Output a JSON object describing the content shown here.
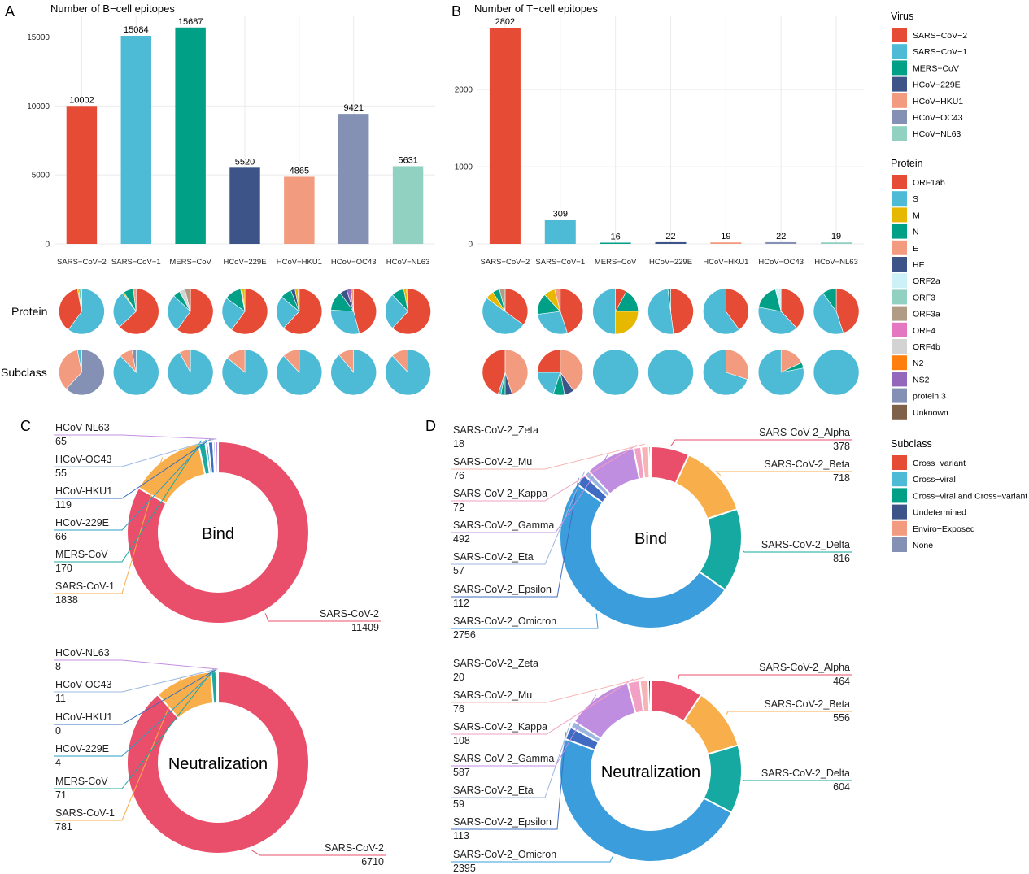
{
  "panel_labels": [
    "A",
    "B",
    "C",
    "D"
  ],
  "row_labels": {
    "protein": "Protein",
    "subclass": "Subclass"
  },
  "colors": {
    "virus": [
      "#E64B35",
      "#4DBBD5",
      "#00A087",
      "#3C5488",
      "#F39B7F",
      "#8491B4",
      "#91D1C2"
    ],
    "protein": [
      "#E64B35",
      "#4DBBD5",
      "#E7B800",
      "#00A087",
      "#F39B7F",
      "#3C5488",
      "#CCF2F8",
      "#91D1C2",
      "#B09C85",
      "#E377C2",
      "#D3D3D3",
      "#FF7F0E",
      "#9467BD",
      "#8491B4",
      "#7E6148"
    ],
    "subclass": [
      "#E64B35",
      "#4DBBD5",
      "#00A087",
      "#3C5488",
      "#F39B7F",
      "#8491B4"
    ],
    "donut_c": [
      "#E94F6A",
      "#F8AE4A",
      "#1BA89F",
      "#2E9CC6",
      "#3A6FBF",
      "#9BB8E0",
      "#C58FE0"
    ],
    "donut_d": [
      "#E94F6A",
      "#F8AE4A",
      "#16A9A2",
      "#3B9DDB",
      "#3F6CC2",
      "#9BB6E0",
      "#C08EE1",
      "#F2A0C4",
      "#F7B4B4"
    ]
  },
  "legends": {
    "virus": {
      "title": "Virus",
      "items": [
        "SARS−CoV−2",
        "SARS−CoV−1",
        "MERS−CoV",
        "HCoV−229E",
        "HCoV−HKU1",
        "HCoV−OC43",
        "HCoV−NL63"
      ]
    },
    "protein": {
      "title": "Protein",
      "items": [
        "ORF1ab",
        "S",
        "M",
        "N",
        "E",
        "HE",
        "ORF2a",
        "ORF3",
        "ORF3a",
        "ORF4",
        "ORF4b",
        "N2",
        "NS2",
        "protein 3",
        "Unknown"
      ]
    },
    "subclass": {
      "title": "Subclass",
      "items": [
        "Cross−variant",
        "Cross−viral",
        "Cross−viral and Cross−variant",
        "Undetermined",
        "Enviro−Exposed",
        "None"
      ]
    }
  },
  "chart_data": [
    {
      "id": "A",
      "type": "bar",
      "title": "Number of B−cell epitopes",
      "categories": [
        "SARS−CoV−2",
        "SARS−CoV−1",
        "MERS−CoV",
        "HCoV−229E",
        "HCoV−HKU1",
        "HCoV−OC43",
        "HCoV−NL63"
      ],
      "values": [
        10002,
        15084,
        15687,
        5520,
        4865,
        9421,
        5631
      ],
      "ylim": [
        0,
        16500
      ],
      "yticks": [
        0,
        5000,
        10000,
        15000
      ],
      "grid": true
    },
    {
      "id": "B",
      "type": "bar",
      "title": "Number of T−cell epitopes",
      "categories": [
        "SARS−CoV−2",
        "SARS−CoV−1",
        "MERS−CoV",
        "HCoV−229E",
        "HCoV−HKU1",
        "HCoV−OC43",
        "HCoV−NL63"
      ],
      "values": [
        2802,
        309,
        16,
        22,
        19,
        22,
        19
      ],
      "ylim": [
        0,
        2950
      ],
      "yticks": [
        0,
        1000,
        2000
      ],
      "grid": true
    },
    {
      "id": "A-pies",
      "type": "pie",
      "protein": [
        [
          {
            "c": 1,
            "v": 60
          },
          {
            "c": 0,
            "v": 37
          },
          {
            "c": 2,
            "v": 1
          },
          {
            "c": 3,
            "v": 1
          },
          {
            "c": 4,
            "v": 1
          }
        ],
        [
          {
            "c": 0,
            "v": 63
          },
          {
            "c": 1,
            "v": 27
          },
          {
            "c": 2,
            "v": 1
          },
          {
            "c": 3,
            "v": 7
          },
          {
            "c": 4,
            "v": 2
          }
        ],
        [
          {
            "c": 0,
            "v": 60
          },
          {
            "c": 1,
            "v": 27
          },
          {
            "c": 3,
            "v": 5
          },
          {
            "c": 10,
            "v": 4
          },
          {
            "c": 8,
            "v": 4
          }
        ],
        [
          {
            "c": 0,
            "v": 60
          },
          {
            "c": 1,
            "v": 25
          },
          {
            "c": 3,
            "v": 12
          },
          {
            "c": 4,
            "v": 1
          },
          {
            "c": 2,
            "v": 2
          }
        ],
        [
          {
            "c": 0,
            "v": 62
          },
          {
            "c": 1,
            "v": 24
          },
          {
            "c": 3,
            "v": 8
          },
          {
            "c": 5,
            "v": 3
          },
          {
            "c": 2,
            "v": 2
          },
          {
            "c": 4,
            "v": 1
          }
        ],
        [
          {
            "c": 0,
            "v": 46
          },
          {
            "c": 1,
            "v": 30
          },
          {
            "c": 3,
            "v": 14
          },
          {
            "c": 5,
            "v": 5
          },
          {
            "c": 12,
            "v": 3
          },
          {
            "c": 4,
            "v": 2
          }
        ],
        [
          {
            "c": 0,
            "v": 62
          },
          {
            "c": 1,
            "v": 26
          },
          {
            "c": 3,
            "v": 9
          },
          {
            "c": 2,
            "v": 2
          },
          {
            "c": 4,
            "v": 1
          }
        ]
      ],
      "subclass": [
        [
          {
            "c": 5,
            "v": 62
          },
          {
            "c": 4,
            "v": 35
          },
          {
            "c": 1,
            "v": 3
          }
        ],
        [
          {
            "c": 1,
            "v": 88
          },
          {
            "c": 4,
            "v": 9
          },
          {
            "c": 5,
            "v": 3
          }
        ],
        [
          {
            "c": 1,
            "v": 92
          },
          {
            "c": 4,
            "v": 8
          }
        ],
        [
          {
            "c": 1,
            "v": 86
          },
          {
            "c": 4,
            "v": 14
          }
        ],
        [
          {
            "c": 1,
            "v": 88
          },
          {
            "c": 4,
            "v": 12
          }
        ],
        [
          {
            "c": 1,
            "v": 89
          },
          {
            "c": 4,
            "v": 11
          }
        ],
        [
          {
            "c": 1,
            "v": 88
          },
          {
            "c": 4,
            "v": 12
          }
        ]
      ]
    },
    {
      "id": "B-pies",
      "type": "pie",
      "protein": [
        [
          {
            "c": 0,
            "v": 35
          },
          {
            "c": 1,
            "v": 50
          },
          {
            "c": 2,
            "v": 6
          },
          {
            "c": 3,
            "v": 5
          },
          {
            "c": 8,
            "v": 4
          }
        ],
        [
          {
            "c": 0,
            "v": 45
          },
          {
            "c": 1,
            "v": 28
          },
          {
            "c": 3,
            "v": 15
          },
          {
            "c": 2,
            "v": 8
          },
          {
            "c": 4,
            "v": 4
          }
        ],
        [
          {
            "c": 0,
            "v": 8
          },
          {
            "c": 3,
            "v": 17
          },
          {
            "c": 2,
            "v": 25
          },
          {
            "c": 1,
            "v": 50
          }
        ],
        [
          {
            "c": 0,
            "v": 48
          },
          {
            "c": 1,
            "v": 50
          },
          {
            "c": 3,
            "v": 2
          }
        ],
        [
          {
            "c": 0,
            "v": 40
          },
          {
            "c": 1,
            "v": 60
          }
        ],
        [
          {
            "c": 0,
            "v": 38
          },
          {
            "c": 1,
            "v": 40
          },
          {
            "c": 3,
            "v": 18
          },
          {
            "c": 6,
            "v": 4
          }
        ],
        [
          {
            "c": 0,
            "v": 45
          },
          {
            "c": 1,
            "v": 45
          },
          {
            "c": 3,
            "v": 10
          }
        ]
      ],
      "subclass": [
        [
          {
            "c": 4,
            "v": 45
          },
          {
            "c": 3,
            "v": 5
          },
          {
            "c": 2,
            "v": 3
          },
          {
            "c": 1,
            "v": 2
          },
          {
            "c": 0,
            "v": 45
          }
        ],
        [
          {
            "c": 4,
            "v": 40
          },
          {
            "c": 3,
            "v": 7
          },
          {
            "c": 2,
            "v": 8
          },
          {
            "c": 1,
            "v": 20
          },
          {
            "c": 0,
            "v": 25
          }
        ],
        [
          {
            "c": 1,
            "v": 100
          }
        ],
        [
          {
            "c": 1,
            "v": 100
          }
        ],
        [
          {
            "c": 4,
            "v": 30
          },
          {
            "c": 1,
            "v": 70
          }
        ],
        [
          {
            "c": 4,
            "v": 18
          },
          {
            "c": 2,
            "v": 4
          },
          {
            "c": 1,
            "v": 78
          }
        ],
        [
          {
            "c": 1,
            "v": 100
          }
        ]
      ]
    },
    {
      "id": "C-bind",
      "type": "pie",
      "center_label": "Bind",
      "labels": [
        "SARS-CoV-2",
        "SARS-CoV-1",
        "MERS-CoV",
        "HCoV-229E",
        "HCoV-HKU1",
        "HCoV-OC43",
        "HCoV-NL63"
      ],
      "values": [
        11409,
        1838,
        170,
        66,
        119,
        55,
        65
      ]
    },
    {
      "id": "C-neut",
      "type": "pie",
      "center_label": "Neutralization",
      "labels": [
        "SARS-CoV-2",
        "SARS-CoV-1",
        "MERS-CoV",
        "HCoV-229E",
        "HCoV-HKU1",
        "HCoV-OC43",
        "HCoV-NL63"
      ],
      "values": [
        6710,
        781,
        71,
        4,
        0,
        11,
        8
      ]
    },
    {
      "id": "D-bind",
      "type": "pie",
      "center_label": "Bind",
      "labels": [
        "SARS-CoV-2_Alpha",
        "SARS-CoV-2_Beta",
        "SARS-CoV-2_Delta",
        "SARS-CoV-2_Omicron",
        "SARS-CoV-2_Epsilon",
        "SARS-CoV-2_Eta",
        "SARS-CoV-2_Gamma",
        "SARS-CoV-2_Kappa",
        "SARS-CoV-2_Mu",
        "SARS-CoV-2_Zeta"
      ],
      "values": [
        378,
        718,
        816,
        2756,
        112,
        57,
        492,
        72,
        76,
        18
      ]
    },
    {
      "id": "D-neut",
      "type": "pie",
      "center_label": "Neutralization",
      "labels": [
        "SARS-CoV-2_Alpha",
        "SARS-CoV-2_Beta",
        "SARS-CoV-2_Delta",
        "SARS-CoV-2_Omicron",
        "SARS-CoV-2_Epsilon",
        "SARS-CoV-2_Eta",
        "SARS-CoV-2_Gamma",
        "SARS-CoV-2_Kappa",
        "SARS-CoV-2_Mu",
        "SARS-CoV-2_Zeta"
      ],
      "values": [
        464,
        556,
        604,
        2395,
        113,
        59,
        587,
        108,
        76,
        20
      ]
    }
  ]
}
